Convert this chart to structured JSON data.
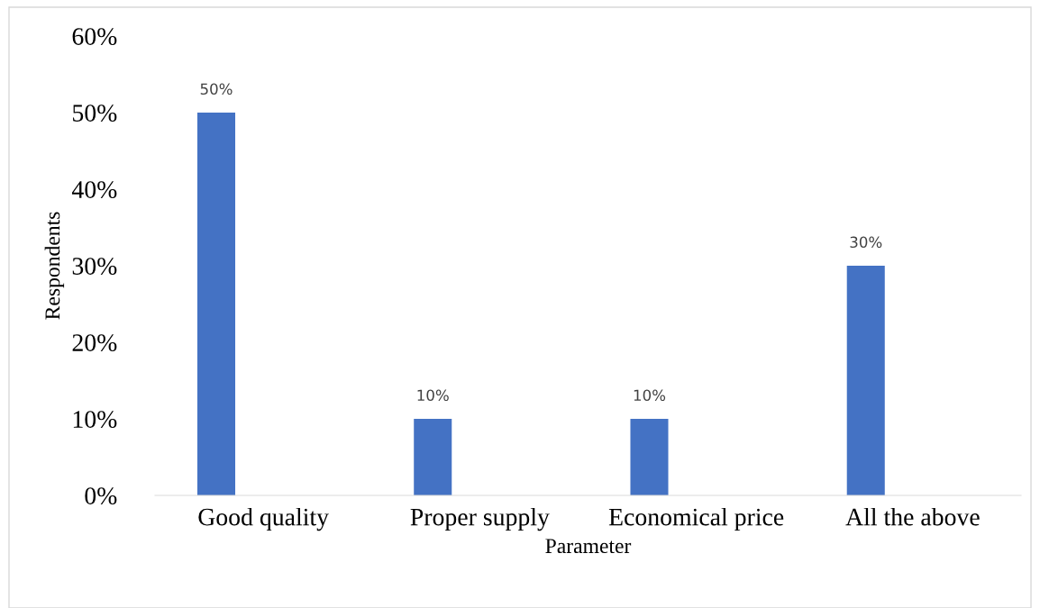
{
  "chart_data": {
    "type": "bar",
    "xlabel": "Parameter",
    "ylabel": "Respondents",
    "categories": [
      "Good quality",
      "Proper supply",
      "Economical price",
      "All the above"
    ],
    "values": [
      50,
      10,
      10,
      30
    ],
    "color": "#4472c4",
    "value_labels": [
      "50%",
      "10%",
      "10%",
      "30%"
    ],
    "ylim": [
      0,
      60
    ],
    "yticks": [
      {
        "value": 0,
        "label": "0%"
      },
      {
        "value": 10,
        "label": "10%"
      },
      {
        "value": 20,
        "label": "20%"
      },
      {
        "value": 30,
        "label": "30%"
      },
      {
        "value": 40,
        "label": "40%"
      },
      {
        "value": 50,
        "label": "50%"
      },
      {
        "value": 60,
        "label": "60%"
      }
    ],
    "grid": false,
    "legend": false
  }
}
